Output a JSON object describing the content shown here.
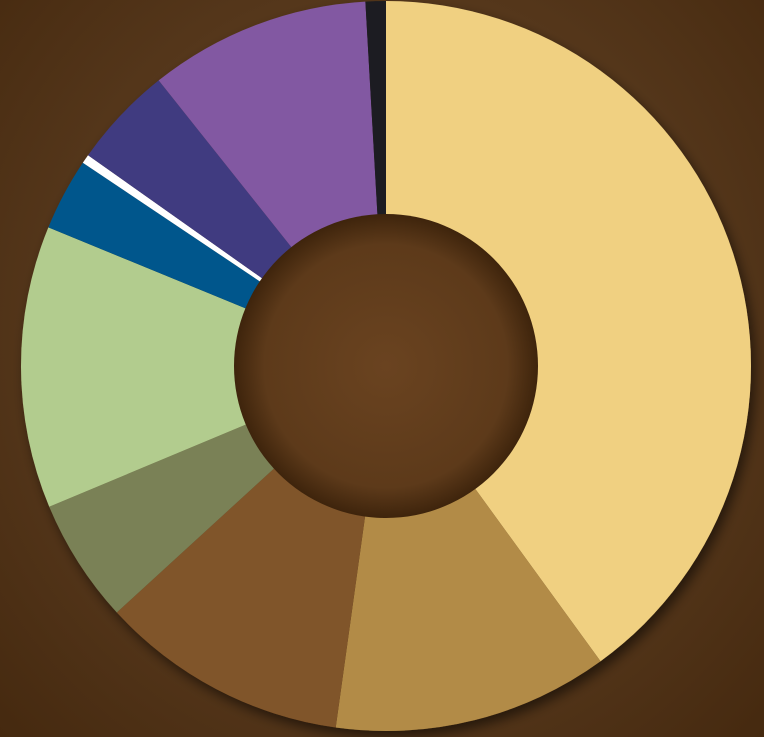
{
  "chart_data": {
    "type": "pie",
    "variant": "donut",
    "title": "",
    "legend": "none",
    "direction": "clockwise",
    "start": "12 o'clock",
    "slices": [
      {
        "value": 40.0,
        "color": "#f0d081"
      },
      {
        "value": 12.2,
        "color": "#b28b47"
      },
      {
        "value": 11.0,
        "color": "#80552a"
      },
      {
        "value": 5.5,
        "color": "#7a8156"
      },
      {
        "value": 12.5,
        "color": "#b2cc8e"
      },
      {
        "value": 3.2,
        "color": "#00568c"
      },
      {
        "value": 0.4,
        "color": "#ffffff"
      },
      {
        "value": 4.5,
        "color": "#403a80"
      },
      {
        "value": 9.8,
        "color": "#8258a2"
      },
      {
        "value": 0.9,
        "color": "#1e1e22"
      }
    ]
  }
}
